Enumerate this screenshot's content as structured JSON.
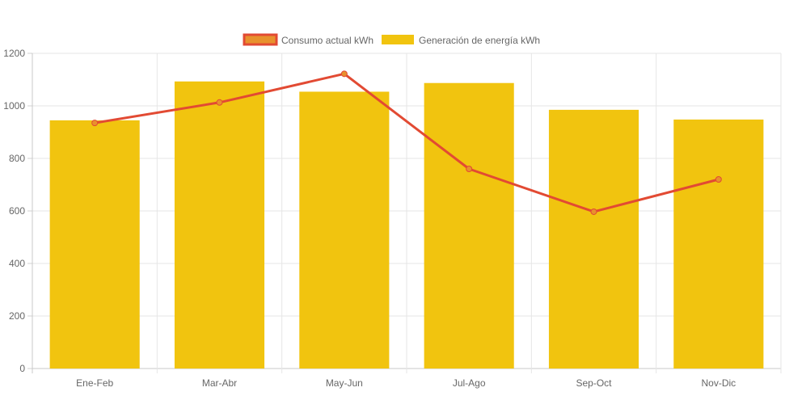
{
  "chart_data": {
    "type": "bar",
    "categories": [
      "Ene-Feb",
      "Mar-Abr",
      "May-Jun",
      "Jul-Ago",
      "Sep-Oct",
      "Nov-Dic"
    ],
    "series": [
      {
        "name": "Consumo actual kWh",
        "type": "line",
        "values": [
          935,
          1013,
          1122,
          760,
          597,
          720
        ],
        "color": "#e24a33",
        "fill_color": "#e8912d"
      },
      {
        "name": "Generación de energía kWh",
        "type": "bar",
        "values": [
          945,
          1093,
          1054,
          1087,
          985,
          948
        ],
        "color": "#f1c40f"
      }
    ],
    "y_ticks": [
      "0",
      "200",
      "400",
      "600",
      "800",
      "1000",
      "1200"
    ],
    "ylim": [
      0,
      1200
    ],
    "grid": true,
    "legend_position": "top-center"
  }
}
